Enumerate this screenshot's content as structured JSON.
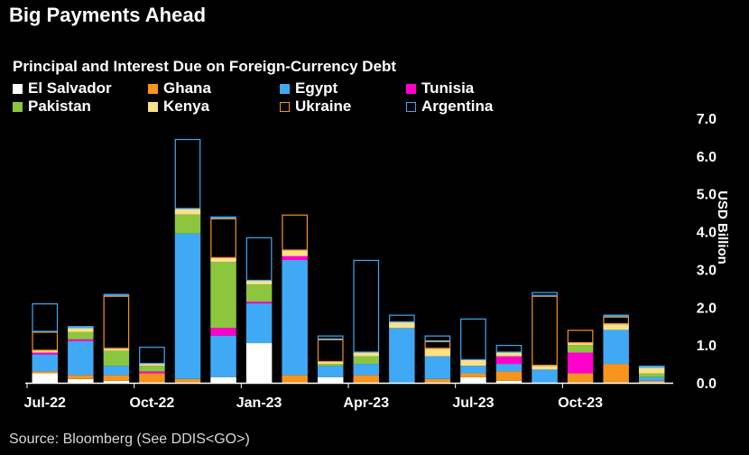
{
  "title": "Big Payments Ahead",
  "source": "Source: Bloomberg (See DDIS<GO>)",
  "chart_data": {
    "type": "bar",
    "stacked": true,
    "subtitle": "Principal and Interest Due on Foreign-Currency Debt",
    "ylabel": "USD Billion",
    "ylim": [
      0,
      7.0
    ],
    "yticks": [
      "0.0",
      "1.0",
      "2.0",
      "3.0",
      "4.0",
      "5.0",
      "6.0",
      "7.0"
    ],
    "x_tick_labels": [
      {
        "label": "Jul-22",
        "index": 0
      },
      {
        "label": "Oct-22",
        "index": 3
      },
      {
        "label": "Jan-23",
        "index": 6
      },
      {
        "label": "Apr-23",
        "index": 9
      },
      {
        "label": "Jul-23",
        "index": 12
      },
      {
        "label": "Oct-23",
        "index": 15
      }
    ],
    "categories": [
      "Jul-22",
      "Aug-22",
      "Sep-22",
      "Oct-22",
      "Nov-22",
      "Dec-22",
      "Jan-23",
      "Feb-23",
      "Mar-23",
      "Apr-23",
      "May-23",
      "Jun-23",
      "Jul-23",
      "Aug-23",
      "Sep-23",
      "Oct-23",
      "Nov-23",
      "Dec-23"
    ],
    "series": [
      {
        "name": "El Salvador",
        "color": "#ffffff",
        "fill": true,
        "values": [
          0.25,
          0.1,
          0.05,
          0.0,
          0.0,
          0.15,
          1.05,
          0.0,
          0.15,
          0.0,
          0.0,
          0.0,
          0.15,
          0.05,
          0.0,
          0.0,
          0.0,
          0.0
        ]
      },
      {
        "name": "Ghana",
        "color": "#f7941d",
        "fill": true,
        "values": [
          0.05,
          0.1,
          0.15,
          0.25,
          0.1,
          0.0,
          0.0,
          0.2,
          0.0,
          0.2,
          0.0,
          0.1,
          0.1,
          0.25,
          0.0,
          0.25,
          0.5,
          0.05
        ]
      },
      {
        "name": "Egypt",
        "color": "#3fa9f5",
        "fill": true,
        "values": [
          0.45,
          0.9,
          0.25,
          0.0,
          3.85,
          1.1,
          1.05,
          3.05,
          0.3,
          0.3,
          1.45,
          0.6,
          0.2,
          0.2,
          0.35,
          0.0,
          0.9,
          0.1
        ]
      },
      {
        "name": "Tunisia",
        "color": "#ff00cc",
        "fill": true,
        "values": [
          0.05,
          0.05,
          0.0,
          0.05,
          0.0,
          0.2,
          0.05,
          0.1,
          0.0,
          0.0,
          0.0,
          0.0,
          0.0,
          0.2,
          0.0,
          0.55,
          0.0,
          0.0
        ]
      },
      {
        "name": "Pakistan",
        "color": "#8cc63f",
        "fill": true,
        "values": [
          0.0,
          0.2,
          0.4,
          0.15,
          0.5,
          1.75,
          0.45,
          0.0,
          0.05,
          0.2,
          0.0,
          0.0,
          0.0,
          0.0,
          0.0,
          0.2,
          0.0,
          0.1
        ]
      },
      {
        "name": "Kenya",
        "color": "#fbe08a",
        "fill": true,
        "values": [
          0.05,
          0.1,
          0.05,
          0.05,
          0.15,
          0.1,
          0.1,
          0.15,
          0.05,
          0.1,
          0.15,
          0.2,
          0.15,
          0.1,
          0.1,
          0.05,
          0.15,
          0.15
        ]
      },
      {
        "name": "Ukraine",
        "color": "#f7941d",
        "fill": false,
        "values": [
          0.5,
          0.0,
          1.4,
          0.0,
          0.0,
          1.05,
          0.0,
          0.95,
          0.6,
          0.0,
          0.0,
          0.2,
          0.0,
          0.0,
          1.85,
          0.35,
          0.2,
          0.0
        ]
      },
      {
        "name": "Argentina",
        "color": "#3fa9f5",
        "fill": false,
        "values": [
          0.75,
          0.05,
          0.05,
          0.45,
          1.85,
          0.05,
          1.15,
          0.0,
          0.1,
          2.45,
          0.2,
          0.15,
          1.1,
          0.2,
          0.1,
          0.0,
          0.05,
          0.05
        ]
      }
    ]
  },
  "legend_layout": [
    {
      "series": 0
    },
    {
      "series": 1
    },
    {
      "series": 2
    },
    {
      "series": 3
    },
    {
      "series": 4
    },
    {
      "series": 5
    },
    {
      "series": 6
    },
    {
      "series": 7
    }
  ]
}
